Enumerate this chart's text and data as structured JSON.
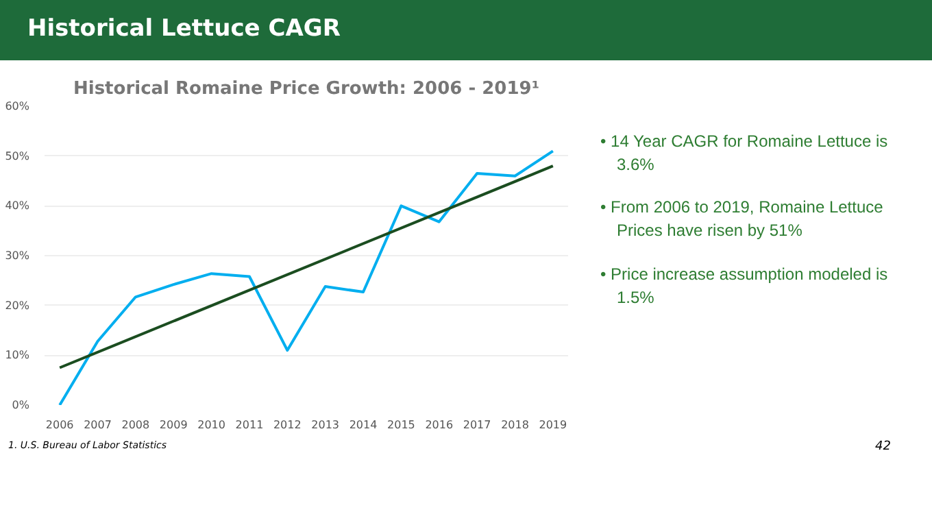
{
  "chart_data": {
    "type": "line",
    "title": "Historical Romaine Price Growth: 2006 - 2019¹",
    "x": [
      2006,
      2007,
      2008,
      2009,
      2010,
      2011,
      2012,
      2013,
      2014,
      2015,
      2016,
      2017,
      2018,
      2019
    ],
    "xlim": [
      2005.6,
      2019.4
    ],
    "xticks": [
      2006,
      2007,
      2008,
      2009,
      2010,
      2011,
      2012,
      2013,
      2014,
      2015,
      2016,
      2017,
      2018,
      2019
    ],
    "series": [
      {
        "color": "#00aeef",
        "values": [
          0,
          12.8,
          21.7,
          24.2,
          26.4,
          25.8,
          11,
          23.8,
          22.7,
          40,
          36.8,
          46.5,
          46,
          51
        ]
      },
      {
        "color": "#1b4d20",
        "x": [
          2006,
          2019
        ],
        "values": [
          7.5,
          48
        ]
      }
    ],
    "ylim": [
      0,
      60
    ],
    "yticks": [
      {
        "value": 0,
        "label": "0%"
      },
      {
        "value": 10,
        "label": "10%"
      },
      {
        "value": 20,
        "label": "20%"
      },
      {
        "value": 30,
        "label": "30%"
      },
      {
        "value": 40,
        "label": "40%"
      },
      {
        "value": 50,
        "label": "50%"
      },
      {
        "value": 60,
        "label": "60%"
      }
    ],
    "grid": "y",
    "marker": "none",
    "line_style": "solid",
    "annotations": [
      "Historical Lettuce CAGR",
      "• 14 Year CAGR for Romaine Lettuce is 3.6%",
      "• From 2006 to 2019, Romaine Lettuce Prices have risen by 51%",
      "• Price increase assumption modeled is 1.5%",
      "1. U.S. Bureau of Labor Statistics",
      "42"
    ]
  }
}
